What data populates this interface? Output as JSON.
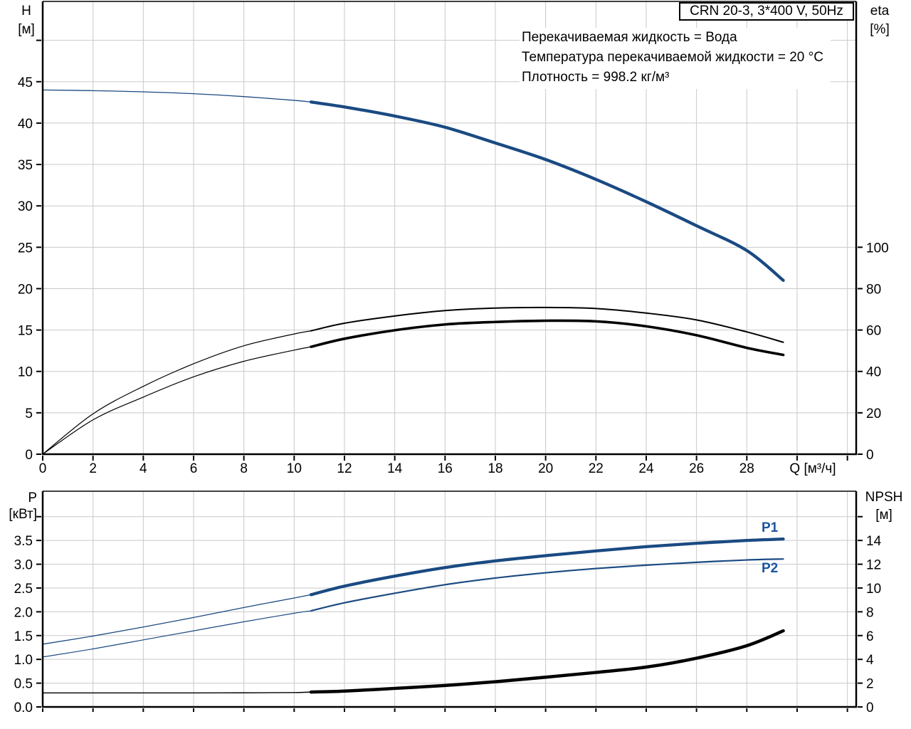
{
  "title_box": {
    "label": "CRN 20-3, 3*400 V, 50Hz"
  },
  "info_lines": {
    "line1": "Перекачиваемая жидкость = Вода",
    "line2": "Температура перекачиваемой жидкости = 20 °C",
    "line3": "Плотность = 998.2 кг/м³"
  },
  "axis_headers": {
    "h_top": "H",
    "h_unit": "[м]",
    "eta_top": "eta",
    "eta_unit": "[%]",
    "p_top": "P",
    "p_unit": "[кВт]",
    "npsh_top": "NPSH",
    "npsh_unit": "[м]"
  },
  "curve_labels": {
    "p1": "P1",
    "p2": "P2"
  },
  "colors": {
    "curve_blue": "#1a4a82",
    "curve_black": "#000000",
    "grid": "#c9c9c9",
    "axis": "#000000"
  },
  "chart_data": [
    {
      "type": "line",
      "name": "pump-performance-curves",
      "x_axis": {
        "label": "Q [м³/ч]",
        "min": 0,
        "max": 32.35,
        "grid_values": [
          2,
          4,
          6,
          8,
          10,
          12,
          14,
          16,
          18,
          20,
          22,
          24,
          26,
          28,
          30,
          32
        ],
        "tick_values": [
          0,
          2,
          4,
          6,
          8,
          10,
          12,
          14,
          16,
          18,
          20,
          22,
          24,
          26,
          28,
          30,
          32
        ],
        "labels": [
          [
            0,
            "0"
          ],
          [
            2,
            "2"
          ],
          [
            4,
            "4"
          ],
          [
            6,
            "6"
          ],
          [
            8,
            "8"
          ],
          [
            10,
            "10"
          ],
          [
            12,
            "12"
          ],
          [
            14,
            "14"
          ],
          [
            16,
            "16"
          ],
          [
            18,
            "18"
          ],
          [
            20,
            "20"
          ],
          [
            22,
            "22"
          ],
          [
            24,
            "24"
          ],
          [
            26,
            "26"
          ],
          [
            28,
            "28"
          ]
        ]
      },
      "y_left_axis": {
        "label": "H [м]",
        "min": 0,
        "max": 54.7,
        "grid_values": [
          5,
          10,
          15,
          20,
          25,
          30,
          35,
          40,
          45,
          50
        ],
        "tick_values": [
          0,
          5,
          10,
          15,
          20,
          25,
          30,
          35,
          40,
          45,
          50
        ],
        "labels": [
          [
            0,
            "0"
          ],
          [
            5,
            "5"
          ],
          [
            10,
            "10"
          ],
          [
            15,
            "15"
          ],
          [
            20,
            "20"
          ],
          [
            25,
            "25"
          ],
          [
            30,
            "30"
          ],
          [
            35,
            "35"
          ],
          [
            40,
            "40"
          ],
          [
            45,
            "45"
          ]
        ]
      },
      "y_right_axis": {
        "label": "eta [%]",
        "unit_per_left_unit": 4,
        "tick_values": [
          0,
          20,
          40,
          60,
          80,
          100
        ],
        "labels": [
          [
            0,
            "0"
          ],
          [
            20,
            "20"
          ],
          [
            40,
            "40"
          ],
          [
            60,
            "60"
          ],
          [
            80,
            "80"
          ],
          [
            100,
            "100"
          ]
        ]
      },
      "series": [
        {
          "name": "H-Q-curve",
          "axis": "left",
          "color": "#1a4a82",
          "width_thin": 1.3,
          "width_thick": 4.3,
          "thick_from": 10.67,
          "points": [
            [
              0,
              44
            ],
            [
              2,
              43.92
            ],
            [
              4,
              43.78
            ],
            [
              6,
              43.55
            ],
            [
              8,
              43.2
            ],
            [
              10,
              42.75
            ],
            [
              10.67,
              42.55
            ],
            [
              12,
              41.95
            ],
            [
              14,
              40.85
            ],
            [
              16,
              39.5
            ],
            [
              18,
              37.6
            ],
            [
              20,
              35.6
            ],
            [
              22,
              33.2
            ],
            [
              24,
              30.5
            ],
            [
              26,
              27.6
            ],
            [
              28,
              24.6
            ],
            [
              29.45,
              21.0
            ]
          ]
        },
        {
          "name": "eta-curve-thin",
          "axis": "right",
          "color": "#000000",
          "width_thin": 1.2,
          "width_thick": 2.0,
          "thick_from": 10.67,
          "points": [
            [
              0,
              0
            ],
            [
              2,
              19.5
            ],
            [
              4,
              32.8
            ],
            [
              6,
              43.7
            ],
            [
              8,
              52.4
            ],
            [
              10,
              58.1
            ],
            [
              10.67,
              59.6
            ],
            [
              12,
              63.3
            ],
            [
              14,
              66.8
            ],
            [
              16,
              69.4
            ],
            [
              18,
              70.6
            ],
            [
              20,
              70.9
            ],
            [
              22,
              70.4
            ],
            [
              24,
              68.2
            ],
            [
              26,
              64.9
            ],
            [
              28,
              59.1
            ],
            [
              29.45,
              54.1
            ]
          ]
        },
        {
          "name": "eta-curve-thick",
          "axis": "right",
          "color": "#000000",
          "width_thin": 1.2,
          "width_thick": 3.6,
          "thick_from": 10.67,
          "points": [
            [
              0,
              0
            ],
            [
              2,
              16.6
            ],
            [
              4,
              27.6
            ],
            [
              6,
              37.4
            ],
            [
              8,
              44.9
            ],
            [
              10,
              50.3
            ],
            [
              10.67,
              51.9
            ],
            [
              12,
              55.8
            ],
            [
              14,
              59.9
            ],
            [
              16,
              62.7
            ],
            [
              18,
              63.9
            ],
            [
              20,
              64.5
            ],
            [
              22,
              64.2
            ],
            [
              24,
              61.8
            ],
            [
              26,
              57.5
            ],
            [
              28,
              51.4
            ],
            [
              29.45,
              48.0
            ]
          ]
        }
      ]
    },
    {
      "type": "line",
      "name": "power-npsh-curves",
      "x_axis": {
        "label": "",
        "min": 0,
        "max": 32.35,
        "grid_values": [
          2,
          4,
          6,
          8,
          10,
          12,
          14,
          16,
          18,
          20,
          22,
          24,
          26,
          28,
          30,
          32
        ],
        "tick_values": [
          0,
          2,
          4,
          6,
          8,
          10,
          12,
          14,
          16,
          18,
          20,
          22,
          24,
          26,
          28,
          30,
          32
        ],
        "labels": []
      },
      "y_left_axis": {
        "label": "P [кВт]",
        "min": 0,
        "max": 4.535,
        "grid_values": [
          0.5,
          1.0,
          1.5,
          2.0,
          2.5,
          3.0,
          3.5,
          4.0
        ],
        "tick_values": [
          0,
          0.5,
          1.0,
          1.5,
          2.0,
          2.5,
          3.0,
          3.5,
          4.0
        ],
        "labels": [
          [
            0,
            "0.0"
          ],
          [
            0.5,
            "0.5"
          ],
          [
            1.0,
            "1.0"
          ],
          [
            1.5,
            "1.5"
          ],
          [
            2.0,
            "2.0"
          ],
          [
            2.5,
            "2.5"
          ],
          [
            3.0,
            "3.0"
          ],
          [
            3.5,
            "3.5"
          ]
        ]
      },
      "y_right_axis": {
        "label": "NPSH [м]",
        "unit_per_left_unit": 4,
        "tick_values": [
          0,
          2,
          4,
          6,
          8,
          10,
          12,
          14,
          16
        ],
        "labels": [
          [
            0,
            "0"
          ],
          [
            2,
            "2"
          ],
          [
            4,
            "4"
          ],
          [
            6,
            "6"
          ],
          [
            8,
            "8"
          ],
          [
            10,
            "10"
          ],
          [
            12,
            "12"
          ],
          [
            14,
            "14"
          ]
        ]
      },
      "series": [
        {
          "name": "P1-curve",
          "axis": "left",
          "color": "#1a4a82",
          "width_thin": 1.3,
          "width_thick": 4.3,
          "thick_from": 10.67,
          "points": [
            [
              0,
              1.32
            ],
            [
              2,
              1.49
            ],
            [
              4,
              1.68
            ],
            [
              6,
              1.88
            ],
            [
              8,
              2.09
            ],
            [
              10,
              2.29
            ],
            [
              10.67,
              2.36
            ],
            [
              12,
              2.54
            ],
            [
              14,
              2.75
            ],
            [
              16,
              2.93
            ],
            [
              18,
              3.07
            ],
            [
              20,
              3.18
            ],
            [
              22,
              3.28
            ],
            [
              24,
              3.37
            ],
            [
              26,
              3.44
            ],
            [
              28,
              3.5
            ],
            [
              29.45,
              3.53
            ]
          ]
        },
        {
          "name": "P2-curve",
          "axis": "left",
          "color": "#1a4a82",
          "width_thin": 1.2,
          "width_thick": 2.2,
          "thick_from": 10.67,
          "points": [
            [
              0,
              1.05
            ],
            [
              2,
              1.22
            ],
            [
              4,
              1.41
            ],
            [
              6,
              1.6
            ],
            [
              8,
              1.79
            ],
            [
              10,
              1.97
            ],
            [
              10.67,
              2.02
            ],
            [
              12,
              2.19
            ],
            [
              14,
              2.39
            ],
            [
              16,
              2.57
            ],
            [
              18,
              2.71
            ],
            [
              20,
              2.82
            ],
            [
              22,
              2.91
            ],
            [
              24,
              2.98
            ],
            [
              26,
              3.04
            ],
            [
              28,
              3.09
            ],
            [
              29.45,
              3.11
            ]
          ]
        },
        {
          "name": "NPSH-curve",
          "axis": "right",
          "color": "#000000",
          "width_thin": 1.4,
          "width_thick": 4.5,
          "thick_from": 10.67,
          "points": [
            [
              0,
              1.18
            ],
            [
              2,
              1.18
            ],
            [
              4,
              1.18
            ],
            [
              6,
              1.18
            ],
            [
              8,
              1.19
            ],
            [
              10,
              1.21
            ],
            [
              10.67,
              1.25
            ],
            [
              12,
              1.33
            ],
            [
              14,
              1.56
            ],
            [
              16,
              1.8
            ],
            [
              18,
              2.12
            ],
            [
              20,
              2.5
            ],
            [
              22,
              2.9
            ],
            [
              24,
              3.35
            ],
            [
              26,
              4.1
            ],
            [
              28,
              5.15
            ],
            [
              29.45,
              6.4
            ]
          ]
        }
      ]
    }
  ]
}
